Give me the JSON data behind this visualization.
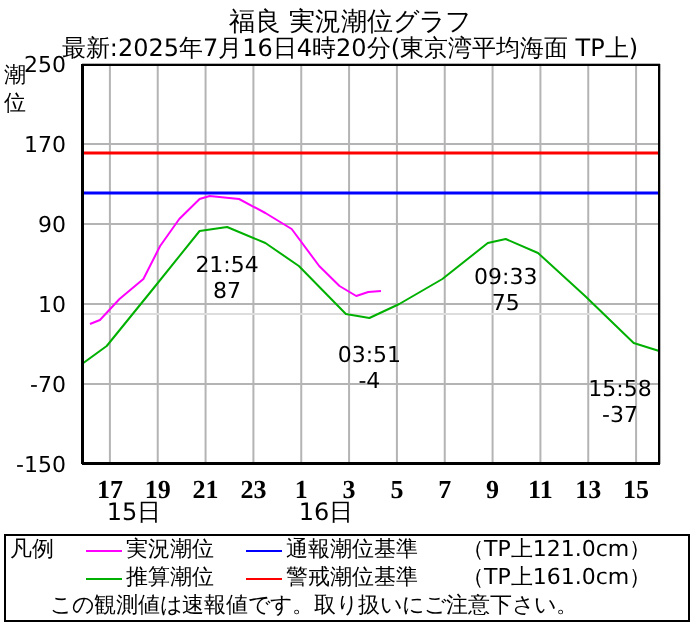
{
  "chart_data": {
    "type": "line",
    "title": "福良 実況潮位グラフ",
    "subtitle": "最新:2025年7月16日4時20分(東京湾平均海面 TP上)",
    "ylabel": "潮位",
    "legend_title": "凡例",
    "legend": "bottom",
    "grid": true,
    "marker": "none",
    "line_style": "solid",
    "xlim": [
      "2025-07-15T15:50",
      "2025-07-16T16:00"
    ],
    "ylim": [
      -150,
      250
    ],
    "yticks": [
      250,
      170,
      90,
      10,
      -70,
      -150
    ],
    "xticks": [
      {
        "value": "2025-07-15T17:00",
        "label": "17"
      },
      {
        "value": "2025-07-15T19:00",
        "label": "19"
      },
      {
        "value": "2025-07-15T21:00",
        "label": "21"
      },
      {
        "value": "2025-07-15T23:00",
        "label": "23"
      },
      {
        "value": "2025-07-16T01:00",
        "label": "1"
      },
      {
        "value": "2025-07-16T03:00",
        "label": "3"
      },
      {
        "value": "2025-07-16T05:00",
        "label": "5"
      },
      {
        "value": "2025-07-16T07:00",
        "label": "7"
      },
      {
        "value": "2025-07-16T09:00",
        "label": "9"
      },
      {
        "value": "2025-07-16T11:00",
        "label": "11"
      },
      {
        "value": "2025-07-16T13:00",
        "label": "13"
      },
      {
        "value": "2025-07-16T15:00",
        "label": "15"
      }
    ],
    "series": [
      {
        "name": "実況潮位",
        "color": "#ff00ff",
        "x": [
          "2025-07-15T16:10",
          "2025-07-15T16:35",
          "2025-07-15T17:24",
          "2025-07-15T18:24",
          "2025-07-15T19:06",
          "2025-07-15T19:54",
          "2025-07-15T20:45",
          "2025-07-15T21:10",
          "2025-07-15T22:24",
          "2025-07-15T23:30",
          "2025-07-16T00:36",
          "2025-07-16T01:45",
          "2025-07-16T02:36",
          "2025-07-16T03:18",
          "2025-07-16T03:48",
          "2025-07-16T04:20"
        ],
        "values": [
          -10,
          -6,
          15,
          35,
          68,
          95,
          115,
          118,
          115,
          101,
          85,
          48,
          28,
          18,
          22,
          23
        ]
      },
      {
        "name": "推算潮位",
        "color": "#00b000",
        "x": [
          "2025-07-15T15:50",
          "2025-07-15T16:52",
          "2025-07-15T18:48",
          "2025-07-15T20:45",
          "2025-07-15T21:54",
          "2025-07-15T23:30",
          "2025-07-16T00:54",
          "2025-07-16T02:52",
          "2025-07-16T03:51",
          "2025-07-16T05:06",
          "2025-07-16T06:54",
          "2025-07-16T08:48",
          "2025-07-16T09:33",
          "2025-07-16T10:54",
          "2025-07-16T12:52",
          "2025-07-16T14:54",
          "2025-07-16T15:58"
        ],
        "values": [
          -50,
          -32,
          25,
          83,
          87,
          71,
          48,
          0,
          -4,
          10,
          35,
          71,
          75,
          61,
          18,
          -29,
          -37
        ]
      }
    ],
    "ref_lines": [
      {
        "axis": "y",
        "value": 121,
        "label": "通報潮位基準　　（TP上121.0cm）",
        "color": "#0000ff"
      },
      {
        "axis": "y",
        "value": 161,
        "label": "警戒潮位基準　　（TP上161.0cm）",
        "color": "#ff0000"
      },
      {
        "axis": "y",
        "value": 0,
        "color": "#dddddd"
      }
    ],
    "annotations": [
      "15日",
      "16日",
      {
        "text": "21:54\n87",
        "x": "2025-07-15T21:54",
        "y": 87
      },
      {
        "text": "03:51\n-4",
        "x": "2025-07-16T03:51",
        "y": -4
      },
      {
        "text": "09:33\n75",
        "x": "2025-07-16T09:33",
        "y": 75
      },
      {
        "text": "15:58\n-37",
        "x": "2025-07-16T15:58",
        "y": -37
      },
      "この観測値は速報値です。取り扱いにご注意下さい。"
    ]
  }
}
